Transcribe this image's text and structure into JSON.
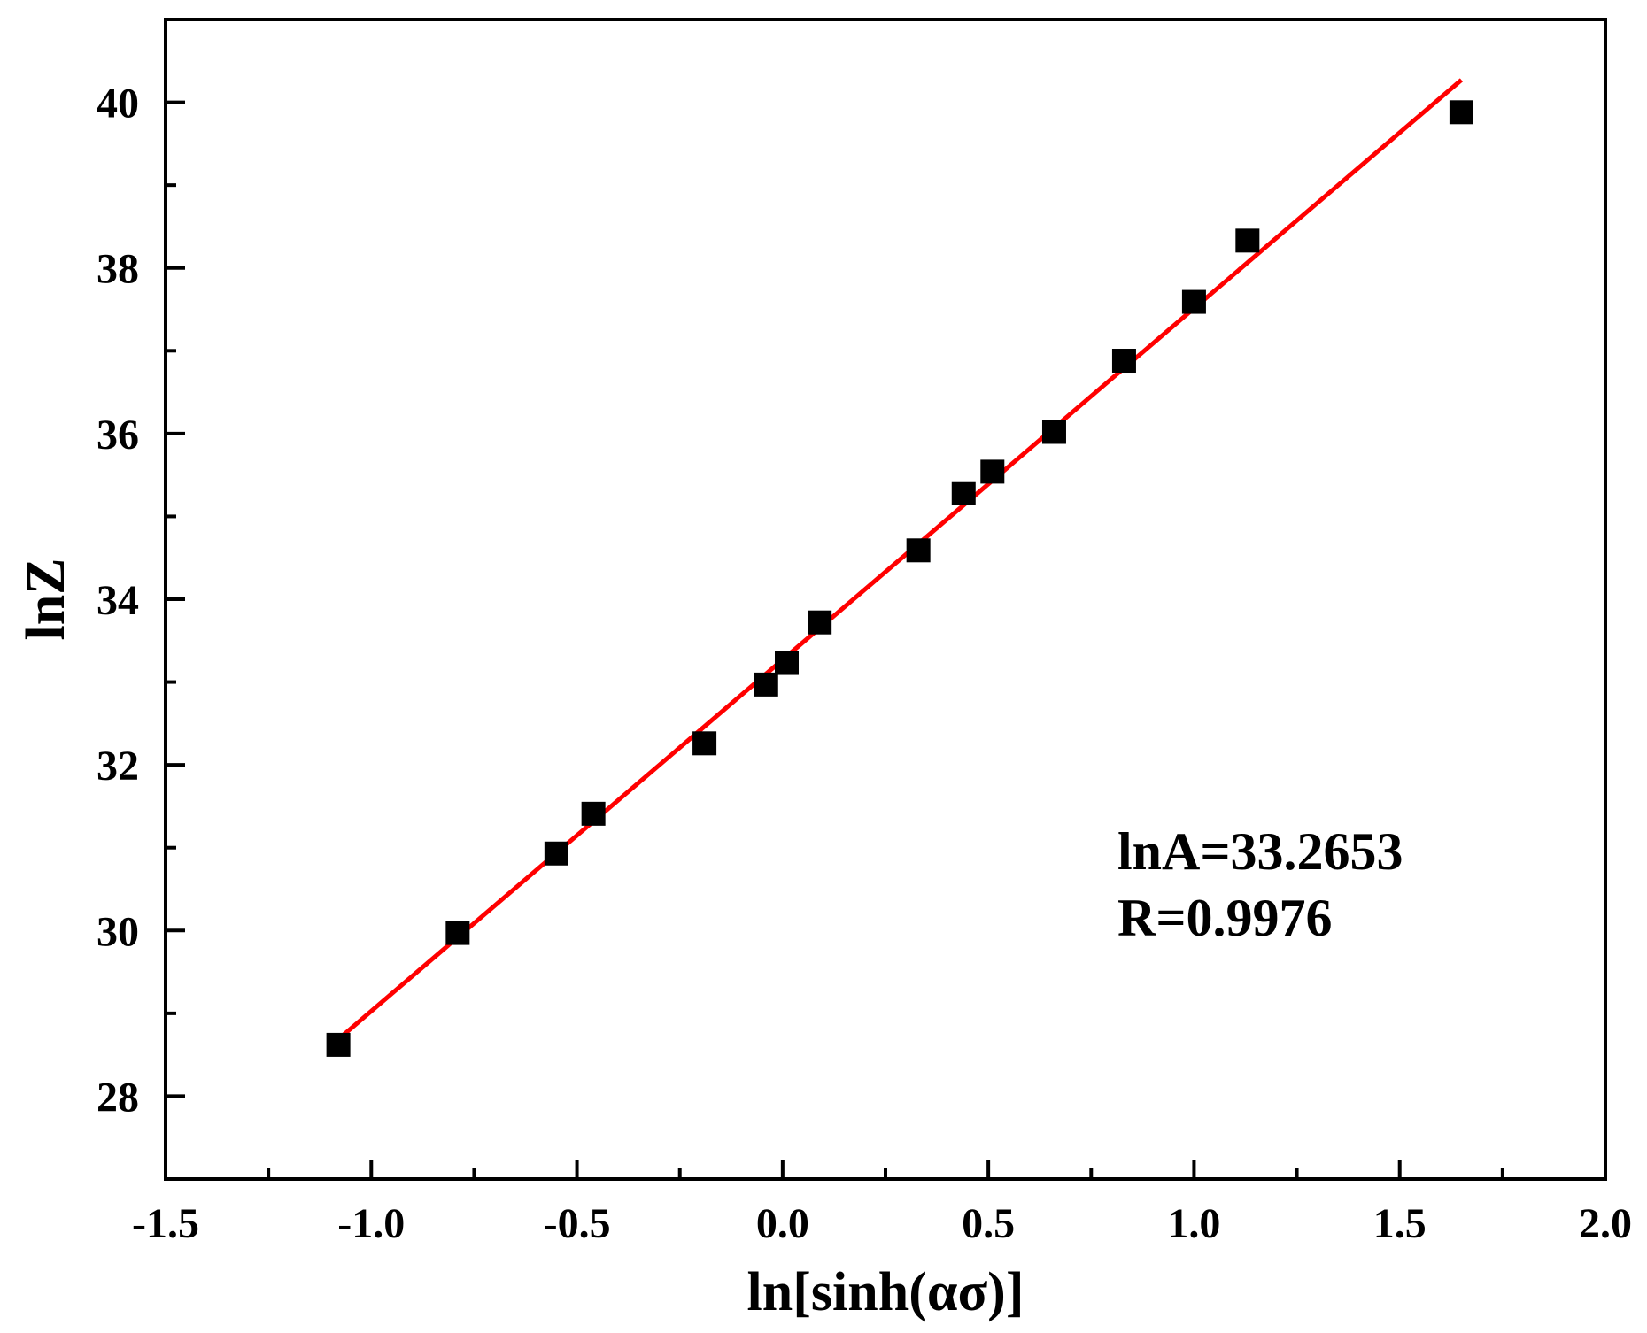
{
  "chart_data": {
    "type": "scatter",
    "xlabel": "ln[sinh(ασ)]",
    "ylabel": "lnZ",
    "xlim": [
      -1.5,
      2.0
    ],
    "ylim": [
      27.0,
      41.0
    ],
    "x_ticks": [
      -1.5,
      -1.0,
      -0.5,
      0.0,
      0.5,
      1.0,
      1.5,
      2.0
    ],
    "x_tick_labels": [
      "-1.5",
      "-1.0",
      "-0.5",
      "0.0",
      "0.5",
      "1.0",
      "1.5",
      "2.0"
    ],
    "y_ticks": [
      28,
      30,
      32,
      34,
      36,
      38,
      40
    ],
    "y_tick_labels": [
      "28",
      "30",
      "32",
      "34",
      "36",
      "38",
      "40"
    ],
    "grid": false,
    "series": [
      {
        "marker": "square",
        "color": "#000000",
        "x": [
          -1.08,
          -0.79,
          -0.55,
          -0.46,
          -0.19,
          -0.04,
          0.01,
          0.09,
          0.33,
          0.44,
          0.51,
          0.66,
          0.83,
          1.0,
          1.13,
          1.65
        ],
        "y": [
          28.62,
          29.97,
          30.93,
          31.41,
          32.26,
          32.97,
          33.23,
          33.72,
          34.59,
          35.28,
          35.54,
          36.02,
          36.88,
          37.59,
          38.33,
          39.88
        ]
      }
    ],
    "fit_line": {
      "color": "#ff0000",
      "x": [
        -1.07,
        1.65
      ],
      "y": [
        28.73,
        40.27
      ]
    },
    "annotations": [
      "lnA=33.2653",
      "R=0.9976"
    ]
  }
}
